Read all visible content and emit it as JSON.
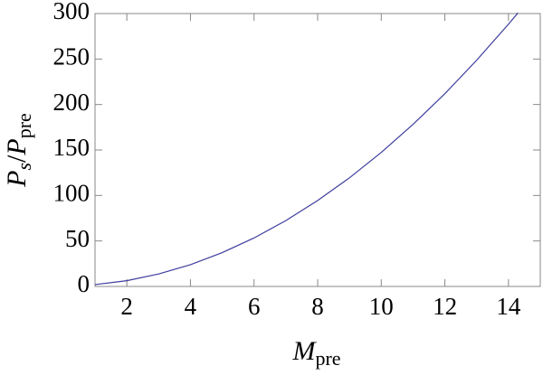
{
  "chart_data": {
    "type": "line",
    "xlabel": [
      "M",
      "pre"
    ],
    "ylabel": [
      "P",
      "s",
      "/",
      "P",
      "pre"
    ],
    "x": [
      1,
      2,
      3,
      4,
      5,
      6,
      7,
      8,
      9,
      10,
      11,
      12,
      13,
      14,
      14.3
    ],
    "series": [
      {
        "color": "#3d3d9e",
        "values": [
          2.05,
          6.35,
          13.7,
          23.9,
          37.2,
          53.3,
          72.4,
          94.5,
          119.4,
          147.3,
          178.2,
          211.9,
          248.7,
          288.3,
          300.8
        ]
      }
    ],
    "xlim": [
      1,
      15
    ],
    "xticks": [
      2,
      4,
      6,
      8,
      10,
      12,
      14
    ],
    "ylim": [
      0,
      300
    ],
    "yticks": [
      0,
      50,
      100,
      150,
      200,
      250,
      300
    ]
  }
}
